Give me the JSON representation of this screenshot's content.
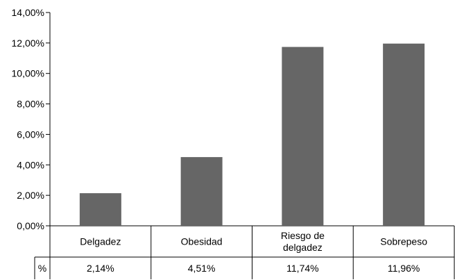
{
  "chart_data": {
    "type": "bar",
    "categories": [
      [
        "Delgadez"
      ],
      [
        "Obesidad"
      ],
      [
        "Riesgo de",
        "delgadez"
      ],
      [
        "Sobrepeso"
      ]
    ],
    "values": [
      2.14,
      4.51,
      11.74,
      11.96
    ],
    "ylim": [
      0,
      14
    ],
    "yticks": [
      "0,00%",
      "2,00%",
      "4,00%",
      "6,00%",
      "8,00%",
      "10,00%",
      "12,00%",
      "14,00%"
    ],
    "table": {
      "row_label": "%",
      "cells": [
        "2,14%",
        "4,51%",
        "11,74%",
        "11,96%"
      ]
    },
    "bar_color": "#666666",
    "grid": false,
    "legend": "none"
  }
}
